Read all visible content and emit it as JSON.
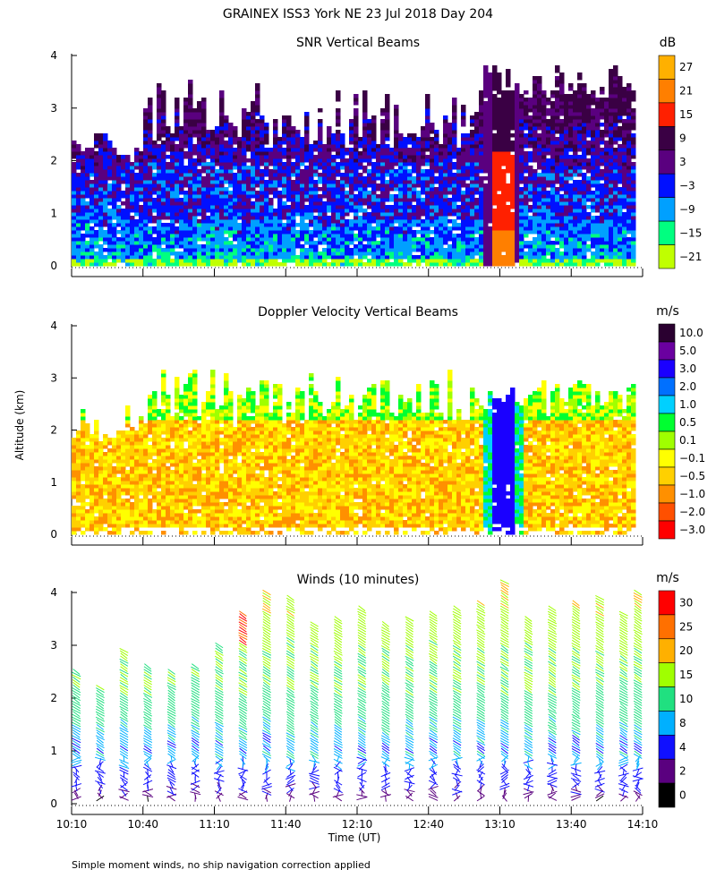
{
  "page": {
    "title": "GRAINEX ISS3 York NE  23 Jul 2018 Day 204",
    "ylabel": "Altitude (km)",
    "xlabel": "Time (UT)",
    "footnote": "Simple moment winds, no ship navigation correction applied"
  },
  "chart_data": [
    {
      "type": "heatmap",
      "title": "SNR Vertical Beams",
      "ylabel": "Altitude (km)",
      "ylim": [
        0,
        4
      ],
      "yticks": [
        "0",
        "1",
        "2",
        "3",
        "4"
      ],
      "x_time_minutes": [
        610,
        850
      ],
      "colorbar": {
        "unit": "dB",
        "labels": [
          "27",
          "21",
          "15",
          "9",
          "3",
          "−3",
          "−9",
          "−15",
          "−21"
        ],
        "colors": [
          "#ffb000",
          "#ff7f00",
          "#ff2000",
          "#3a0044",
          "#5a007f",
          "#0010ff",
          "#00a0ff",
          "#00ff80",
          "#c0ff00"
        ]
      }
    },
    {
      "type": "heatmap",
      "title": "Doppler Velocity Vertical Beams",
      "ylabel": "Altitude (km)",
      "ylim": [
        0,
        4
      ],
      "yticks": [
        "0",
        "1",
        "2",
        "3",
        "4"
      ],
      "x_time_minutes": [
        610,
        850
      ],
      "colorbar": {
        "unit": "m/s",
        "labels": [
          "10.0",
          "5.0",
          "3.0",
          "2.0",
          "1.0",
          "0.5",
          "0.1",
          "−0.1",
          "−0.5",
          "−1.0",
          "−2.0",
          "−3.0"
        ],
        "colors": [
          "#2a0030",
          "#6a00a0",
          "#1a00ff",
          "#0070ff",
          "#00d0ff",
          "#00ff30",
          "#a0ff00",
          "#ffff00",
          "#ffd000",
          "#ff9000",
          "#ff5000",
          "#ff0000"
        ]
      }
    },
    {
      "type": "scatter",
      "title": "Winds (10 minutes)",
      "ylabel": "Altitude (km)",
      "ylim": [
        0,
        4
      ],
      "yticks": [
        "0",
        "1",
        "2",
        "3",
        "4"
      ],
      "xlabel": "Time (UT)",
      "x_tick_labels": [
        "10:10",
        "10:40",
        "11:10",
        "11:40",
        "12:10",
        "12:40",
        "13:10",
        "13:40",
        "14:10"
      ],
      "x_tick_minutes": [
        610,
        640,
        670,
        700,
        730,
        760,
        790,
        820,
        850
      ],
      "profile_times_minutes": [
        612,
        622,
        632,
        642,
        652,
        662,
        672,
        682,
        692,
        702,
        712,
        722,
        732,
        742,
        752,
        762,
        772,
        782,
        792,
        802,
        812,
        822,
        832,
        842,
        848
      ],
      "profile_top_km": [
        2.5,
        2.2,
        2.9,
        2.6,
        2.5,
        2.6,
        3.0,
        3.6,
        4.0,
        3.9,
        3.4,
        3.5,
        3.7,
        3.4,
        3.5,
        3.6,
        3.7,
        3.8,
        4.2,
        3.5,
        3.7,
        3.8,
        3.9,
        3.6,
        4.0
      ],
      "colorbar": {
        "unit": "m/s",
        "labels": [
          "30",
          "25",
          "20",
          "15",
          "10",
          "8",
          "4",
          "2",
          "0"
        ],
        "colors": [
          "#ff0000",
          "#ff7000",
          "#ffb000",
          "#a0ff00",
          "#20e080",
          "#00b0ff",
          "#1010ff",
          "#5a007f",
          "#000000"
        ]
      }
    }
  ]
}
